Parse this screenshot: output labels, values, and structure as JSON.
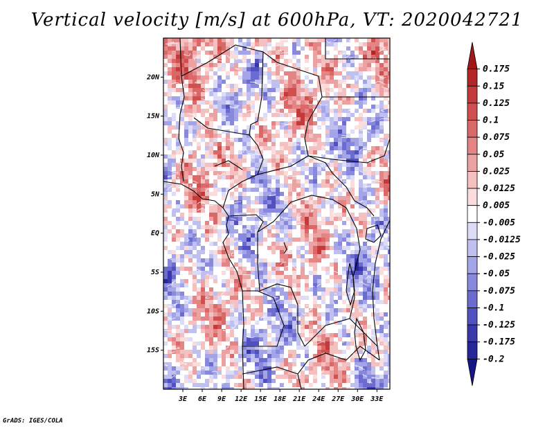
{
  "title": "Vertical velocity [m/s] at 600hPa, VT: 2020042721",
  "credit": "GrADS: IGES/COLA",
  "chart_data": {
    "type": "heatmap",
    "title": "Vertical velocity [m/s] at 600hPa, VT: 2020042721",
    "variable": "Vertical velocity",
    "units": "m/s",
    "level": "600hPa",
    "valid_time": "2020042721",
    "x_range_deg": [
      0,
      35
    ],
    "y_range_deg": [
      -20,
      25
    ],
    "x_ticks": [
      {
        "value": 3,
        "label": "3E"
      },
      {
        "value": 6,
        "label": "6E"
      },
      {
        "value": 9,
        "label": "9E"
      },
      {
        "value": 12,
        "label": "12E"
      },
      {
        "value": 15,
        "label": "15E"
      },
      {
        "value": 18,
        "label": "18E"
      },
      {
        "value": 21,
        "label": "21E"
      },
      {
        "value": 24,
        "label": "24E"
      },
      {
        "value": 27,
        "label": "27E"
      },
      {
        "value": 30,
        "label": "30E"
      },
      {
        "value": 33,
        "label": "33E"
      }
    ],
    "y_ticks": [
      {
        "value": 20,
        "label": "20N"
      },
      {
        "value": 15,
        "label": "15N"
      },
      {
        "value": 10,
        "label": "10N"
      },
      {
        "value": 5,
        "label": "5N"
      },
      {
        "value": 0,
        "label": "EQ"
      },
      {
        "value": -5,
        "label": "5S"
      },
      {
        "value": -10,
        "label": "10S"
      },
      {
        "value": -15,
        "label": "15S"
      }
    ],
    "colorbar": {
      "labels": [
        "0.175",
        "0.15",
        "0.125",
        "0.1",
        "0.075",
        "0.05",
        "0.025",
        "0.0125",
        "0.005",
        "-0.005",
        "-0.0125",
        "-0.025",
        "-0.05",
        "-0.075",
        "-0.1",
        "-0.125",
        "-0.175",
        "-0.2"
      ],
      "colors": [
        "#a01818",
        "#b42626",
        "#c43a3a",
        "#d05050",
        "#da6868",
        "#e48484",
        "#eca2a2",
        "#f4c0c0",
        "#fadcdc",
        "#ffffff",
        "#dcdcf8",
        "#c0c0f0",
        "#a4a4e8",
        "#8888dc",
        "#6c6cd0",
        "#5050c0",
        "#3838ac",
        "#26269a",
        "#161688"
      ]
    }
  }
}
